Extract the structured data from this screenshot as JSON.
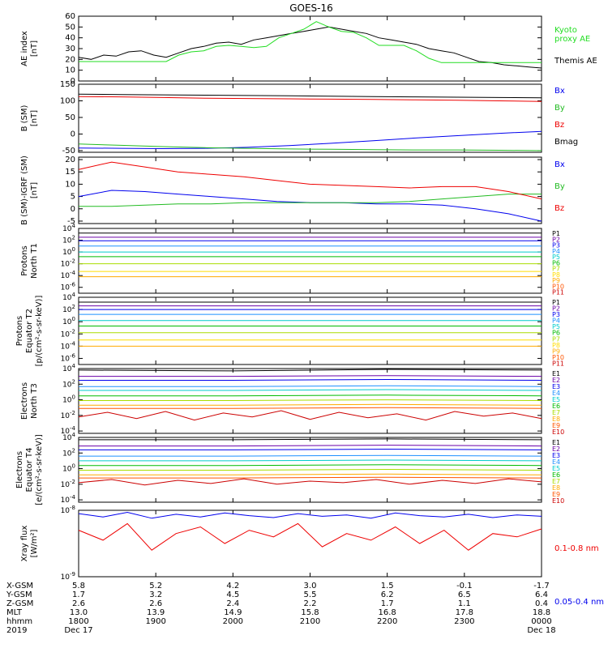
{
  "title": "GOES-16",
  "chart_data": [
    {
      "type": "line",
      "ylabel": "AE index\n[nT]",
      "yticks": [
        "60",
        "50",
        "40",
        "30",
        "20",
        "10",
        "0"
      ],
      "legend": [
        {
          "label": "Kyoto\nproxy AE",
          "color": "#22dd22"
        },
        {
          "label": "Themis AE",
          "color": "#000000"
        }
      ],
      "ylim": [
        0,
        60
      ],
      "series": [
        {
          "name": "Themis AE",
          "color": "#000000",
          "values": [
            22,
            20,
            24,
            23,
            27,
            28,
            24,
            22,
            26,
            30,
            32,
            35,
            36,
            34,
            38,
            40,
            42,
            44,
            46,
            48,
            50,
            48,
            46,
            44,
            40,
            38,
            36,
            34,
            30,
            28,
            26,
            22,
            18,
            17,
            15,
            14,
            13,
            12
          ]
        },
        {
          "name": "Kyoto proxy AE",
          "color": "#22dd22",
          "values": [
            18,
            18,
            18,
            18,
            18,
            18,
            18,
            18,
            24,
            27,
            28,
            32,
            33,
            32,
            31,
            32,
            40,
            44,
            48,
            55,
            50,
            46,
            45,
            40,
            33,
            33,
            33,
            28,
            21,
            17,
            17,
            17,
            17,
            17,
            17,
            17,
            17,
            17
          ]
        }
      ]
    },
    {
      "type": "line",
      "ylabel": "B (SM)\n[nT]",
      "yticks": [
        "150",
        "100",
        "50",
        "0",
        "-50"
      ],
      "legend": [
        {
          "label": "Bx",
          "color": "#0000ee"
        },
        {
          "label": "By",
          "color": "#22bb22"
        },
        {
          "label": "Bz",
          "color": "#ee0000"
        },
        {
          "label": "Bmag",
          "color": "#000000"
        }
      ],
      "ylim": [
        -55,
        150
      ],
      "series": [
        {
          "name": "Bx",
          "color": "#0000ee",
          "values": [
            -42,
            -43,
            -44,
            -43,
            -40,
            -35,
            -28,
            -20,
            -12,
            -5,
            2,
            8
          ]
        },
        {
          "name": "By",
          "color": "#22bb22",
          "values": [
            -30,
            -34,
            -38,
            -41,
            -43,
            -45,
            -46,
            -47,
            -48,
            -48,
            -49,
            -50
          ]
        },
        {
          "name": "Bz",
          "color": "#ee0000",
          "values": [
            113,
            112,
            110,
            108,
            107,
            106,
            105,
            104,
            103,
            102,
            100,
            98
          ]
        },
        {
          "name": "Bmag",
          "color": "#000000",
          "values": [
            120,
            119,
            118,
            117,
            116,
            115,
            114,
            113,
            112,
            111,
            110,
            109
          ]
        }
      ]
    },
    {
      "type": "line",
      "ylabel": "B (SM)-IGRF (SM)\n[nT]",
      "yticks": [
        "20",
        "15",
        "10",
        "5",
        "0",
        "-5"
      ],
      "legend": [
        {
          "label": "Bx",
          "color": "#0000ee"
        },
        {
          "label": "By",
          "color": "#22bb22"
        },
        {
          "label": "Bz",
          "color": "#ee0000"
        }
      ],
      "ylim": [
        -6,
        21
      ],
      "series": [
        {
          "name": "Bx",
          "color": "#0000ee",
          "values": [
            5,
            7.5,
            7,
            6,
            5,
            4,
            3,
            2.5,
            2.5,
            2,
            2,
            1.5,
            0,
            -2,
            -5
          ]
        },
        {
          "name": "By",
          "color": "#22bb22",
          "values": [
            1,
            1,
            1.5,
            2,
            2,
            2.5,
            2.5,
            2.5,
            2.5,
            2.5,
            3,
            4,
            5,
            6,
            6
          ]
        },
        {
          "name": "Bz",
          "color": "#ee0000",
          "values": [
            16,
            19,
            17,
            15,
            14,
            13,
            11.5,
            10,
            9.5,
            9,
            8.5,
            9,
            9,
            7,
            4
          ]
        }
      ]
    },
    {
      "type": "line",
      "ylabel": "Protons\nNorth T1",
      "yticks": [
        "10^4",
        "10^2",
        "10^0",
        "10^-2",
        "10^-4",
        "10^-6"
      ],
      "legend": [
        {
          "label": "P1",
          "color": "#000000"
        },
        {
          "label": "P2",
          "color": "#6a00a8"
        },
        {
          "label": "P3",
          "color": "#0000ee"
        },
        {
          "label": "P4",
          "color": "#1e90ff"
        },
        {
          "label": "P5",
          "color": "#00cccc"
        },
        {
          "label": "P6",
          "color": "#00bb00"
        },
        {
          "label": "P7",
          "color": "#aadd00"
        },
        {
          "label": "P8",
          "color": "#ffdd00"
        },
        {
          "label": "P9",
          "color": "#ffaa00"
        },
        {
          "label": "P10",
          "color": "#ff5500"
        },
        {
          "label": "P11",
          "color": "#cc0000"
        }
      ],
      "ylim": [
        -7,
        4
      ],
      "series": [
        {
          "name": "P1",
          "color": "#000000",
          "values": [
            3.2,
            3.2
          ]
        },
        {
          "name": "P2",
          "color": "#6a00a8",
          "values": [
            2.5,
            2.5
          ]
        },
        {
          "name": "P3",
          "color": "#0000ee",
          "values": [
            1.9,
            1.9
          ]
        },
        {
          "name": "P4",
          "color": "#1e90ff",
          "values": [
            1.0,
            1.0
          ]
        },
        {
          "name": "P5",
          "color": "#00cccc",
          "values": [
            0,
            0
          ]
        },
        {
          "name": "P6",
          "color": "#00bb00",
          "values": [
            -0.8,
            -0.8
          ]
        },
        {
          "name": "P7",
          "color": "#aadd00",
          "values": [
            -2.0,
            -2.0
          ]
        },
        {
          "name": "P8",
          "color": "#ffdd00",
          "values": [
            -3.3,
            -3.3
          ]
        },
        {
          "name": "P9",
          "color": "#ffaa00",
          "values": [
            -4.2,
            -4.2
          ]
        }
      ]
    },
    {
      "type": "line",
      "ylabel": "Protons\nEquator T2\n[p/(cm²-s-sr-keV)]",
      "yticks": [
        "10^4",
        "10^2",
        "10^0",
        "10^-2",
        "10^-4",
        "10^-6"
      ],
      "legend": [
        {
          "label": "P1",
          "color": "#000000"
        },
        {
          "label": "P2",
          "color": "#6a00a8"
        },
        {
          "label": "P3",
          "color": "#0000ee"
        },
        {
          "label": "P4",
          "color": "#1e90ff"
        },
        {
          "label": "P5",
          "color": "#00cccc"
        },
        {
          "label": "P6",
          "color": "#00bb00"
        },
        {
          "label": "P7",
          "color": "#aadd00"
        },
        {
          "label": "P8",
          "color": "#ffdd00"
        },
        {
          "label": "P9",
          "color": "#ffaa00"
        },
        {
          "label": "P10",
          "color": "#ff5500"
        },
        {
          "label": "P11",
          "color": "#cc0000"
        }
      ],
      "ylim": [
        -7,
        4
      ],
      "series": [
        {
          "name": "P1",
          "color": "#000000",
          "values": [
            3.2,
            3.2
          ]
        },
        {
          "name": "P2",
          "color": "#6a00a8",
          "values": [
            2.6,
            2.6
          ]
        },
        {
          "name": "P3",
          "color": "#0000ee",
          "values": [
            2.0,
            2.0
          ]
        },
        {
          "name": "P4",
          "color": "#1e90ff",
          "values": [
            1.2,
            1.2
          ]
        },
        {
          "name": "P5",
          "color": "#00cccc",
          "values": [
            0.2,
            0.2
          ]
        },
        {
          "name": "P6",
          "color": "#00bb00",
          "values": [
            -0.7,
            -0.7
          ]
        },
        {
          "name": "P7",
          "color": "#aadd00",
          "values": [
            -1.8,
            -1.8
          ]
        },
        {
          "name": "P8",
          "color": "#ffdd00",
          "values": [
            -3.0,
            -3.0
          ]
        },
        {
          "name": "P9",
          "color": "#ffaa00",
          "values": [
            -4.0,
            -4.0
          ]
        }
      ]
    },
    {
      "type": "line",
      "ylabel": "Electrons\nNorth T3",
      "yticks": [
        "10^4",
        "10^2",
        "10^0",
        "10^-2",
        "10^-4"
      ],
      "legend": [
        {
          "label": "E1",
          "color": "#000000"
        },
        {
          "label": "E2",
          "color": "#6a00a8"
        },
        {
          "label": "E3",
          "color": "#0000ee"
        },
        {
          "label": "E4",
          "color": "#1e90ff"
        },
        {
          "label": "E5",
          "color": "#00cccc"
        },
        {
          "label": "E6",
          "color": "#00bb00"
        },
        {
          "label": "E7",
          "color": "#aadd00"
        },
        {
          "label": "E8",
          "color": "#ffaa00"
        },
        {
          "label": "E9",
          "color": "#ff5500"
        },
        {
          "label": "E10",
          "color": "#cc0000"
        }
      ],
      "ylim": [
        -4.3,
        4
      ],
      "series": [
        {
          "name": "E1",
          "color": "#000000",
          "values": [
            3.8,
            3.7,
            3.9,
            3.8
          ]
        },
        {
          "name": "E2",
          "color": "#6a00a8",
          "values": [
            3.0,
            3.0,
            3.1,
            3.0
          ]
        },
        {
          "name": "E3",
          "color": "#0000ee",
          "values": [
            2.5,
            2.5,
            2.6,
            2.5
          ]
        },
        {
          "name": "E4",
          "color": "#1e90ff",
          "values": [
            1.7,
            1.7,
            1.8,
            1.7
          ]
        },
        {
          "name": "E5",
          "color": "#00cccc",
          "values": [
            1.2,
            1.2,
            1.3,
            1.2
          ]
        },
        {
          "name": "E6",
          "color": "#00bb00",
          "values": [
            0.5,
            0.5,
            0.6,
            0.5
          ]
        },
        {
          "name": "E7",
          "color": "#aadd00",
          "values": [
            -0.1,
            -0.1,
            0,
            -0.1
          ]
        },
        {
          "name": "E8",
          "color": "#ffaa00",
          "values": [
            -0.7,
            -0.7,
            -0.6,
            -0.7
          ]
        },
        {
          "name": "E9",
          "color": "#ff5500",
          "values": [
            -1.1,
            -1.1,
            -1.0,
            -1.1
          ]
        },
        {
          "name": "E10",
          "color": "#cc0000",
          "values": [
            -2.2,
            -1.6,
            -2.4,
            -1.5,
            -2.6,
            -1.7,
            -2.2,
            -1.4,
            -2.5,
            -1.6,
            -2.3,
            -1.8,
            -2.6,
            -1.5,
            -2.1,
            -1.7,
            -2.4
          ]
        }
      ]
    },
    {
      "type": "line",
      "ylabel": "Electrons\nEquator T4\n[e/(cm²-s-sr-keV)]",
      "yticks": [
        "10^4",
        "10^2",
        "10^0",
        "10^-2",
        "10^-4"
      ],
      "legend": [
        {
          "label": "E1",
          "color": "#000000"
        },
        {
          "label": "E2",
          "color": "#6a00a8"
        },
        {
          "label": "E3",
          "color": "#0000ee"
        },
        {
          "label": "E4",
          "color": "#1e90ff"
        },
        {
          "label": "E5",
          "color": "#00cccc"
        },
        {
          "label": "E6",
          "color": "#00bb00"
        },
        {
          "label": "E7",
          "color": "#aadd00"
        },
        {
          "label": "E8",
          "color": "#ffaa00"
        },
        {
          "label": "E9",
          "color": "#ff5500"
        },
        {
          "label": "E10",
          "color": "#cc0000"
        }
      ],
      "ylim": [
        -4.3,
        4
      ],
      "series": [
        {
          "name": "E1",
          "color": "#000000",
          "values": [
            3.7,
            3.7,
            3.8,
            3.7
          ]
        },
        {
          "name": "E2",
          "color": "#6a00a8",
          "values": [
            2.9,
            2.9,
            3.0,
            2.9
          ]
        },
        {
          "name": "E3",
          "color": "#0000ee",
          "values": [
            2.4,
            2.4,
            2.5,
            2.4
          ]
        },
        {
          "name": "E4",
          "color": "#1e90ff",
          "values": [
            1.6,
            1.6,
            1.7,
            1.6
          ]
        },
        {
          "name": "E5",
          "color": "#00cccc",
          "values": [
            1.0,
            1.0,
            1.1,
            1.0
          ]
        },
        {
          "name": "E6",
          "color": "#00bb00",
          "values": [
            0.4,
            0.4,
            0.5,
            0.4
          ]
        },
        {
          "name": "E7",
          "color": "#aadd00",
          "values": [
            -0.2,
            -0.2,
            -0.1,
            -0.2
          ]
        },
        {
          "name": "E8",
          "color": "#ffaa00",
          "values": [
            -0.8,
            -0.8,
            -0.7,
            -0.8
          ]
        },
        {
          "name": "E9",
          "color": "#ff5500",
          "values": [
            -1.2,
            -1.2,
            -1.1,
            -1.2
          ]
        },
        {
          "name": "E10",
          "color": "#cc0000",
          "values": [
            -1.8,
            -1.4,
            -2.1,
            -1.5,
            -1.9,
            -1.3,
            -2.0,
            -1.6,
            -1.8,
            -1.4,
            -2.0,
            -1.5,
            -1.9,
            -1.3,
            -1.7
          ]
        }
      ]
    },
    {
      "type": "line",
      "ylabel": "Xray flux\n[W/m²]",
      "yticks": [
        "10^-8",
        "10^-9"
      ],
      "legend": [
        {
          "label": "0.1-0.8 nm",
          "color": "#ee0000"
        },
        {
          "label": "0.05-0.4 nm",
          "color": "#0000ee"
        }
      ],
      "ylim": [
        -9,
        -8
      ],
      "series": [
        {
          "name": "0.05-0.4 nm",
          "color": "#0000ee",
          "values": [
            -8.05,
            -8.1,
            -8.03,
            -8.12,
            -8.06,
            -8.1,
            -8.04,
            -8.08,
            -8.11,
            -8.05,
            -8.09,
            -8.07,
            -8.12,
            -8.04,
            -8.08,
            -8.1,
            -8.06,
            -8.11,
            -8.07,
            -8.09
          ]
        },
        {
          "name": "0.1-0.8 nm",
          "color": "#ee0000",
          "values": [
            -8.3,
            -8.45,
            -8.2,
            -8.6,
            -8.35,
            -8.25,
            -8.5,
            -8.3,
            -8.4,
            -8.2,
            -8.55,
            -8.35,
            -8.45,
            -8.25,
            -8.5,
            -8.3,
            -8.6,
            -8.35,
            -8.4,
            -8.28
          ]
        }
      ]
    }
  ],
  "bottom_axis": {
    "row_labels": [
      "X-GSM",
      "Y-GSM",
      "Z-GSM",
      "MLT",
      "hhmm",
      "2019"
    ],
    "columns": [
      [
        "5.8",
        "1.7",
        "2.6",
        "13.0",
        "1800",
        "Dec 17"
      ],
      [
        "5.2",
        "3.2",
        "2.6",
        "13.9",
        "1900",
        ""
      ],
      [
        "4.2",
        "4.5",
        "2.4",
        "14.9",
        "2000",
        ""
      ],
      [
        "3.0",
        "5.5",
        "2.2",
        "15.8",
        "2100",
        ""
      ],
      [
        "1.5",
        "6.2",
        "1.7",
        "16.8",
        "2200",
        ""
      ],
      [
        "-0.1",
        "6.5",
        "1.1",
        "17.8",
        "2300",
        ""
      ],
      [
        "-1.7",
        "6.4",
        "0.4",
        "18.8",
        "0000",
        "Dec 18"
      ]
    ]
  }
}
